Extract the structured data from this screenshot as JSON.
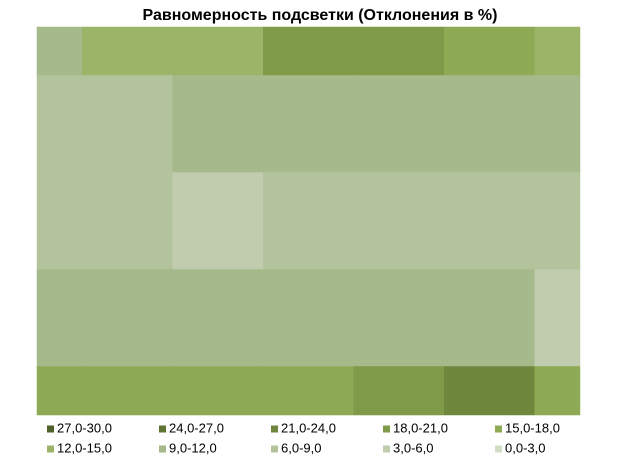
{
  "chart_data": {
    "type": "contour",
    "title": "Равномерность подсветки (Отклонения в %)",
    "levels": [
      {
        "name": "27,0-30,0",
        "from": 27,
        "to": 30,
        "color": "#4f6228"
      },
      {
        "name": "24,0-27,0",
        "from": 24,
        "to": 27,
        "color": "#5e7431"
      },
      {
        "name": "21,0-24,0",
        "from": 21,
        "to": 24,
        "color": "#6f873c"
      },
      {
        "name": "18,0-21,0",
        "from": 18,
        "to": 21,
        "color": "#7f9a48"
      },
      {
        "name": "15,0-18,0",
        "from": 15,
        "to": 18,
        "color": "#8eaa55"
      },
      {
        "name": "12,0-15,0",
        "from": 12,
        "to": 15,
        "color": "#9bb468"
      },
      {
        "name": "9,0-12,0",
        "from": 9,
        "to": 12,
        "color": "#a6b98a"
      },
      {
        "name": "6,0-9,0",
        "from": 6,
        "to": 9,
        "color": "#b3c39c"
      },
      {
        "name": "3,0-6,0",
        "from": 3,
        "to": 6,
        "color": "#c0ccad"
      },
      {
        "name": "0,0-3,0",
        "from": 0,
        "to": 3,
        "color": "#d3dcc5"
      }
    ],
    "z": [
      [
        9,
        12,
        12,
        18,
        18,
        15,
        12
      ],
      [
        6,
        6,
        9,
        9,
        9,
        9,
        9
      ],
      [
        6,
        6,
        3,
        6,
        6,
        6,
        6
      ],
      [
        9,
        9,
        9,
        9,
        9,
        9,
        3
      ],
      [
        15,
        15,
        15,
        15,
        18,
        21,
        15
      ]
    ]
  }
}
